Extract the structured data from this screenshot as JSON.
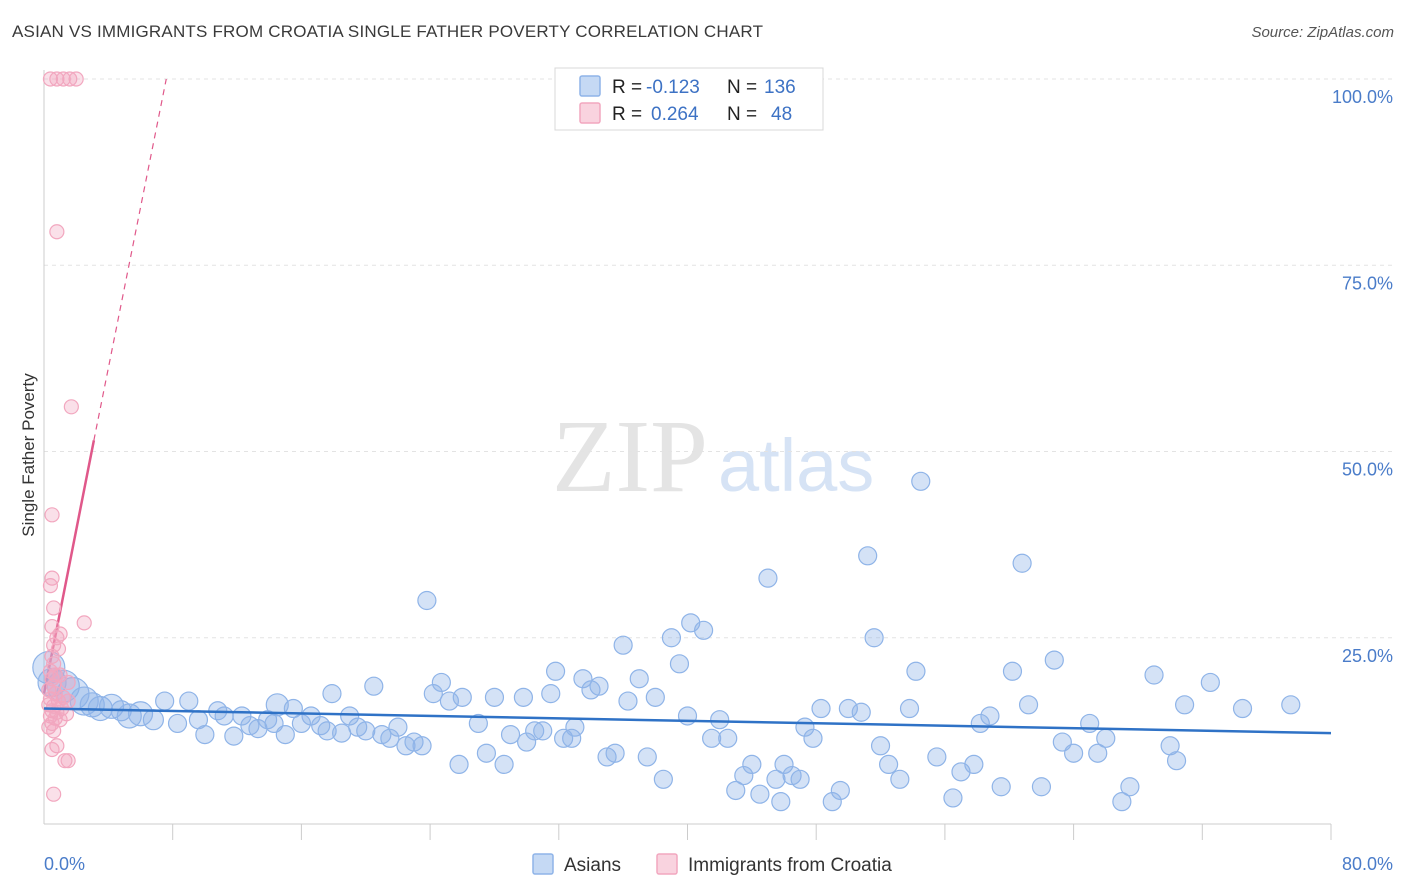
{
  "header": {
    "title": "ASIAN VS IMMIGRANTS FROM CROATIA SINGLE FATHER POVERTY CORRELATION CHART",
    "source": "Source: ZipAtlas.com"
  },
  "watermark": {
    "zip": "ZIP",
    "atlas": "atlas"
  },
  "legend": {
    "r_label": "R =",
    "n_label": "N =",
    "rows": [
      {
        "r": "-0.123",
        "n": "136",
        "color": "#8fb4e8"
      },
      {
        "r": "0.264",
        "n": "48",
        "color": "#f2a7bf"
      }
    ]
  },
  "colors": {
    "blue": "#8fb4e8",
    "blue_line": "#2f72c6",
    "pink": "#f2a7bf",
    "pink_line": "#e0588a"
  },
  "chart_data": {
    "type": "scatter",
    "title": "ASIAN VS IMMIGRANTS FROM CROATIA SINGLE FATHER POVERTY CORRELATION CHART",
    "xlabel": "",
    "ylabel": "Single Father Poverty",
    "xlim": [
      0,
      80
    ],
    "ylim": [
      0,
      100
    ],
    "x_tick_labels": [
      "0.0%",
      "80.0%"
    ],
    "y_ticks": [
      25,
      50,
      75,
      100
    ],
    "y_tick_labels": [
      "25.0%",
      "50.0%",
      "75.0%",
      "100.0%"
    ],
    "legend_position": "top-center",
    "series": [
      {
        "name": "Asians",
        "color": "#8fb4e8",
        "trend": {
          "x": [
            0,
            80
          ],
          "y": [
            15.5,
            12.2
          ]
        },
        "points": [
          [
            0.3,
            21.0,
            16
          ],
          [
            0.5,
            19.0,
            14
          ],
          [
            1.2,
            18.5,
            16
          ],
          [
            1.8,
            17.5,
            16
          ],
          [
            2.5,
            16.5,
            14
          ],
          [
            3.0,
            16.0,
            12
          ],
          [
            3.5,
            15.5,
            12
          ],
          [
            4.2,
            15.8,
            12
          ],
          [
            4.8,
            15.2,
            10
          ],
          [
            5.3,
            14.5,
            12
          ],
          [
            6.0,
            14.8,
            12
          ],
          [
            6.8,
            14.0,
            10
          ],
          [
            7.5,
            16.5,
            9
          ],
          [
            8.3,
            13.5,
            9
          ],
          [
            9.0,
            16.5,
            9
          ],
          [
            9.6,
            14.0,
            9
          ],
          [
            10.0,
            12.0,
            9
          ],
          [
            10.8,
            15.2,
            9
          ],
          [
            11.2,
            14.5,
            9
          ],
          [
            11.8,
            11.8,
            9
          ],
          [
            12.3,
            14.5,
            9
          ],
          [
            12.8,
            13.2,
            9
          ],
          [
            13.3,
            12.8,
            9
          ],
          [
            13.9,
            14.0,
            9
          ],
          [
            14.3,
            13.5,
            9
          ],
          [
            15.0,
            12.0,
            9
          ],
          [
            14.5,
            16.0,
            11
          ],
          [
            15.5,
            15.5,
            9
          ],
          [
            16.0,
            13.5,
            9
          ],
          [
            16.6,
            14.5,
            9
          ],
          [
            17.2,
            13.2,
            9
          ],
          [
            17.6,
            12.5,
            9
          ],
          [
            17.9,
            17.5,
            9
          ],
          [
            18.5,
            12.2,
            9
          ],
          [
            19.0,
            14.5,
            9
          ],
          [
            19.5,
            13.0,
            9
          ],
          [
            20.0,
            12.5,
            9
          ],
          [
            20.5,
            18.5,
            9
          ],
          [
            21.0,
            12.0,
            9
          ],
          [
            21.5,
            11.5,
            9
          ],
          [
            22.0,
            13.0,
            9
          ],
          [
            22.5,
            10.5,
            9
          ],
          [
            23.0,
            11.0,
            9
          ],
          [
            23.5,
            10.5,
            9
          ],
          [
            23.8,
            30.0,
            9
          ],
          [
            24.2,
            17.5,
            9
          ],
          [
            24.7,
            19.0,
            9
          ],
          [
            25.2,
            16.5,
            9
          ],
          [
            25.8,
            8.0,
            9
          ],
          [
            26.0,
            17.0,
            9
          ],
          [
            27.0,
            13.5,
            9
          ],
          [
            27.5,
            9.5,
            9
          ],
          [
            28.0,
            17.0,
            9
          ],
          [
            28.6,
            8.0,
            9
          ],
          [
            29.0,
            12.0,
            9
          ],
          [
            29.8,
            17.0,
            9
          ],
          [
            30.0,
            11.0,
            9
          ],
          [
            30.5,
            12.5,
            9
          ],
          [
            31.0,
            12.5,
            9
          ],
          [
            31.5,
            17.5,
            9
          ],
          [
            31.8,
            20.5,
            9
          ],
          [
            32.3,
            11.5,
            9
          ],
          [
            32.8,
            11.5,
            9
          ],
          [
            33.0,
            13.0,
            9
          ],
          [
            33.5,
            19.5,
            9
          ],
          [
            34.0,
            18.0,
            9
          ],
          [
            34.5,
            18.5,
            9
          ],
          [
            35.0,
            9.0,
            9
          ],
          [
            35.5,
            9.5,
            9
          ],
          [
            36.0,
            24.0,
            9
          ],
          [
            36.3,
            16.5,
            9
          ],
          [
            37.0,
            19.5,
            9
          ],
          [
            37.5,
            9.0,
            9
          ],
          [
            38.0,
            17.0,
            9
          ],
          [
            38.5,
            6.0,
            9
          ],
          [
            39.0,
            25.0,
            9
          ],
          [
            39.5,
            21.5,
            9
          ],
          [
            40.0,
            14.5,
            9
          ],
          [
            40.2,
            27.0,
            9
          ],
          [
            41.0,
            26.0,
            9
          ],
          [
            41.5,
            11.5,
            9
          ],
          [
            42.0,
            14.0,
            9
          ],
          [
            42.5,
            11.5,
            9
          ],
          [
            43.0,
            4.5,
            9
          ],
          [
            43.5,
            6.5,
            9
          ],
          [
            44.0,
            8.0,
            9
          ],
          [
            44.5,
            4.0,
            9
          ],
          [
            45.0,
            33.0,
            9
          ],
          [
            45.5,
            6.0,
            9
          ],
          [
            45.8,
            3.0,
            9
          ],
          [
            46.0,
            8.0,
            9
          ],
          [
            46.5,
            6.5,
            9
          ],
          [
            47.0,
            6.0,
            9
          ],
          [
            47.3,
            13.0,
            9
          ],
          [
            47.8,
            11.5,
            9
          ],
          [
            48.3,
            15.5,
            9
          ],
          [
            49.0,
            3.0,
            9
          ],
          [
            49.5,
            4.5,
            9
          ],
          [
            50.0,
            15.5,
            9
          ],
          [
            50.8,
            15.0,
            9
          ],
          [
            51.2,
            36.0,
            9
          ],
          [
            51.6,
            25.0,
            9
          ],
          [
            52.0,
            10.5,
            9
          ],
          [
            52.5,
            8.0,
            9
          ],
          [
            53.2,
            6.0,
            9
          ],
          [
            53.8,
            15.5,
            9
          ],
          [
            54.2,
            20.5,
            9
          ],
          [
            54.5,
            46.0,
            9
          ],
          [
            55.5,
            9.0,
            9
          ],
          [
            56.5,
            3.5,
            9
          ],
          [
            57.0,
            7.0,
            9
          ],
          [
            57.8,
            8.0,
            9
          ],
          [
            58.2,
            13.5,
            9
          ],
          [
            58.8,
            14.5,
            9
          ],
          [
            59.5,
            5.0,
            9
          ],
          [
            60.2,
            20.5,
            9
          ],
          [
            60.8,
            35.0,
            9
          ],
          [
            61.2,
            16.0,
            9
          ],
          [
            62.0,
            5.0,
            9
          ],
          [
            62.8,
            22.0,
            9
          ],
          [
            63.3,
            11.0,
            9
          ],
          [
            64.0,
            9.5,
            9
          ],
          [
            65.0,
            13.5,
            9
          ],
          [
            65.5,
            9.5,
            9
          ],
          [
            66.0,
            11.5,
            9
          ],
          [
            67.0,
            3.0,
            9
          ],
          [
            67.5,
            5.0,
            9
          ],
          [
            69.0,
            20.0,
            9
          ],
          [
            70.0,
            10.5,
            9
          ],
          [
            70.4,
            8.5,
            9
          ],
          [
            70.9,
            16.0,
            9
          ],
          [
            72.5,
            19.0,
            9
          ],
          [
            74.5,
            15.5,
            9
          ],
          [
            77.5,
            16.0,
            9
          ]
        ]
      },
      {
        "name": "Immigrants from Croatia",
        "color": "#f2a7bf",
        "trend": {
          "x": [
            0,
            3.1
          ],
          "y": [
            17.5,
            51.5
          ]
        },
        "trend_extended": {
          "x": [
            3.1,
            7.6
          ],
          "y": [
            51.5,
            100
          ]
        },
        "points": [
          [
            0.4,
            100.0,
            7
          ],
          [
            0.8,
            100.0,
            7
          ],
          [
            1.2,
            100.0,
            7
          ],
          [
            1.6,
            100.0,
            7
          ],
          [
            2.0,
            100.0,
            7
          ],
          [
            0.8,
            79.5,
            7
          ],
          [
            1.7,
            56.0,
            7
          ],
          [
            0.5,
            41.5,
            7
          ],
          [
            0.5,
            33.0,
            7
          ],
          [
            0.4,
            32.0,
            7
          ],
          [
            0.6,
            29.0,
            7
          ],
          [
            2.5,
            27.0,
            7
          ],
          [
            0.5,
            26.5,
            7
          ],
          [
            0.8,
            25.0,
            7
          ],
          [
            1.0,
            25.5,
            7
          ],
          [
            0.6,
            24.0,
            7
          ],
          [
            0.9,
            23.5,
            7
          ],
          [
            0.5,
            22.5,
            7
          ],
          [
            0.6,
            21.5,
            7
          ],
          [
            0.4,
            20.5,
            7
          ],
          [
            0.7,
            20.0,
            7
          ],
          [
            1.0,
            20.0,
            7
          ],
          [
            0.5,
            19.5,
            7
          ],
          [
            1.5,
            19.0,
            7
          ],
          [
            0.6,
            18.5,
            7
          ],
          [
            0.3,
            18.0,
            7
          ],
          [
            0.7,
            17.5,
            7
          ],
          [
            1.2,
            17.0,
            7
          ],
          [
            0.4,
            16.8,
            7
          ],
          [
            0.9,
            16.5,
            7
          ],
          [
            1.5,
            16.5,
            7
          ],
          [
            0.3,
            16.0,
            7
          ],
          [
            0.6,
            15.8,
            7
          ],
          [
            1.1,
            15.5,
            7
          ],
          [
            0.5,
            15.2,
            7
          ],
          [
            0.8,
            15.0,
            7
          ],
          [
            1.4,
            14.8,
            7
          ],
          [
            0.4,
            14.5,
            7
          ],
          [
            0.7,
            14.2,
            7
          ],
          [
            1.0,
            14.0,
            7
          ],
          [
            0.5,
            13.5,
            7
          ],
          [
            0.3,
            13.0,
            7
          ],
          [
            0.6,
            12.5,
            7
          ],
          [
            0.8,
            10.5,
            7
          ],
          [
            0.5,
            10.0,
            7
          ],
          [
            1.3,
            8.5,
            7
          ],
          [
            1.5,
            8.5,
            7
          ],
          [
            0.6,
            4.0,
            7
          ]
        ]
      }
    ]
  }
}
